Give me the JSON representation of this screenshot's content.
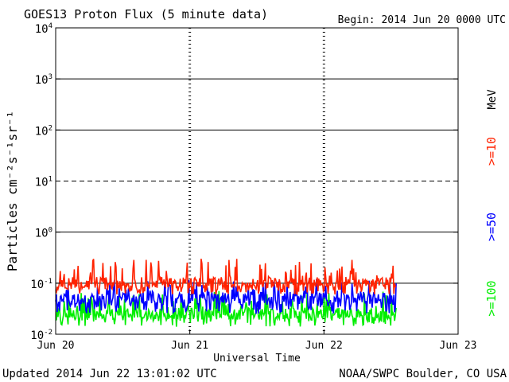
{
  "page": {
    "title": "GOES13 Proton Flux (5 minute data)",
    "begin": "Begin: 2014 Jun 20 0000 UTC",
    "updated": "Updated 2014 Jun 22 13:01:02 UTC",
    "credit": "NOAA/SWPC Boulder, CO USA"
  },
  "chart_data": {
    "type": "line",
    "title": "GOES13 Proton Flux (5 minute data)",
    "xlabel": "Universal Time",
    "ylabel": "Particles cm⁻²s⁻¹sr⁻¹",
    "yscale": "log",
    "ylim": [
      0.01,
      10000
    ],
    "xlim": [
      "2014-06-20",
      "2014-06-23"
    ],
    "x_ticks": [
      "Jun 20",
      "Jun 21",
      "Jun 22",
      "Jun 23"
    ],
    "y_ticks": [
      {
        "base": "10",
        "exp": "-2"
      },
      {
        "base": "10",
        "exp": "-1"
      },
      {
        "base": "10",
        "exp": "0"
      },
      {
        "base": "10",
        "exp": "1"
      },
      {
        "base": "10",
        "exp": "2"
      },
      {
        "base": "10",
        "exp": "3"
      },
      {
        "base": "10",
        "exp": "4"
      }
    ],
    "unit_label": "MeV",
    "series": [
      {
        "name": ">=10",
        "color": "#ff2200",
        "x_end": "2014-06-22 12:55",
        "typical": 0.1,
        "range": [
          0.06,
          0.3
        ]
      },
      {
        "name": ">=50",
        "color": "#0000ff",
        "x_end": "2014-06-22 12:55",
        "typical": 0.05,
        "range": [
          0.025,
          0.12
        ]
      },
      {
        "name": ">=100",
        "color": "#00ee00",
        "x_end": "2014-06-22 12:55",
        "typical": 0.025,
        "range": [
          0.014,
          0.07
        ]
      }
    ],
    "reference_lines": [
      {
        "value": 0.1,
        "style": "solid"
      },
      {
        "value": 1,
        "style": "solid"
      },
      {
        "value": 10,
        "style": "dashed"
      },
      {
        "value": 100,
        "style": "solid"
      },
      {
        "value": 1000,
        "style": "solid"
      }
    ],
    "grid": "day separators dashed vertical"
  }
}
